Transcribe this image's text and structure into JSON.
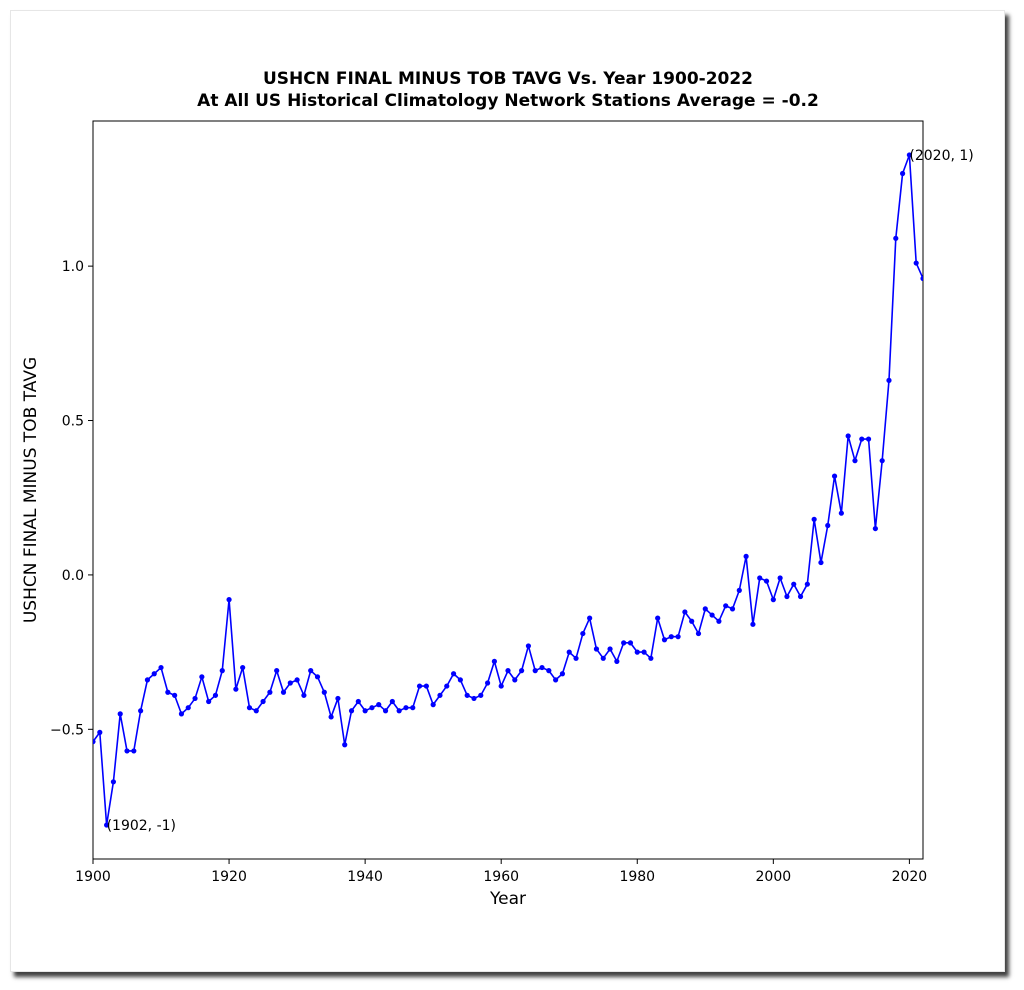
{
  "chart_data": {
    "type": "line",
    "title": "USHCN FINAL MINUS TOB TAVG Vs. Year 1900-2022",
    "subtitle": "At All US Historical Climatology Network Stations Average = -0.2",
    "xlabel": "Year",
    "ylabel": "USHCN FINAL MINUS TOB TAVG",
    "xlim": [
      1900,
      2022
    ],
    "ylim": [
      -0.92,
      1.47
    ],
    "xticks": [
      "1900",
      "1920",
      "1940",
      "1960",
      "1980",
      "2000",
      "2020"
    ],
    "yticks": [
      "−0.5",
      "0.0",
      "0.5",
      "1.0"
    ],
    "xtick_values": [
      1900,
      1920,
      1940,
      1960,
      1980,
      2000,
      2020
    ],
    "ytick_values": [
      -0.5,
      0.0,
      0.5,
      1.0
    ],
    "grid": false,
    "series": [
      {
        "color": "#0000ff",
        "x": [
          1900,
          1901,
          1902,
          1903,
          1904,
          1905,
          1906,
          1907,
          1908,
          1909,
          1910,
          1911,
          1912,
          1913,
          1914,
          1915,
          1916,
          1917,
          1918,
          1919,
          1920,
          1921,
          1922,
          1923,
          1924,
          1925,
          1926,
          1927,
          1928,
          1929,
          1930,
          1931,
          1932,
          1933,
          1934,
          1935,
          1936,
          1937,
          1938,
          1939,
          1940,
          1941,
          1942,
          1943,
          1944,
          1945,
          1946,
          1947,
          1948,
          1949,
          1950,
          1951,
          1952,
          1953,
          1954,
          1955,
          1956,
          1957,
          1958,
          1959,
          1960,
          1961,
          1962,
          1963,
          1964,
          1965,
          1966,
          1967,
          1968,
          1969,
          1970,
          1971,
          1972,
          1973,
          1974,
          1975,
          1976,
          1977,
          1978,
          1979,
          1980,
          1981,
          1982,
          1983,
          1984,
          1985,
          1986,
          1987,
          1988,
          1989,
          1990,
          1991,
          1992,
          1993,
          1994,
          1995,
          1996,
          1997,
          1998,
          1999,
          2000,
          2001,
          2002,
          2003,
          2004,
          2005,
          2006,
          2007,
          2008,
          2009,
          2010,
          2011,
          2012,
          2013,
          2014,
          2015,
          2016,
          2017,
          2018,
          2019,
          2020,
          2021,
          2022
        ],
        "y": [
          -0.54,
          -0.51,
          -0.81,
          -0.67,
          -0.45,
          -0.57,
          -0.57,
          -0.44,
          -0.34,
          -0.32,
          -0.3,
          -0.38,
          -0.39,
          -0.45,
          -0.43,
          -0.4,
          -0.33,
          -0.41,
          -0.39,
          -0.31,
          -0.08,
          -0.37,
          -0.3,
          -0.43,
          -0.44,
          -0.41,
          -0.38,
          -0.31,
          -0.38,
          -0.35,
          -0.34,
          -0.39,
          -0.31,
          -0.33,
          -0.38,
          -0.46,
          -0.4,
          -0.55,
          -0.44,
          -0.41,
          -0.44,
          -0.43,
          -0.42,
          -0.44,
          -0.41,
          -0.44,
          -0.43,
          -0.43,
          -0.36,
          -0.36,
          -0.42,
          -0.39,
          -0.36,
          -0.32,
          -0.34,
          -0.39,
          -0.4,
          -0.39,
          -0.35,
          -0.28,
          -0.36,
          -0.31,
          -0.34,
          -0.31,
          -0.23,
          -0.31,
          -0.3,
          -0.31,
          -0.34,
          -0.32,
          -0.25,
          -0.27,
          -0.19,
          -0.14,
          -0.24,
          -0.27,
          -0.24,
          -0.28,
          -0.22,
          -0.22,
          -0.25,
          -0.25,
          -0.27,
          -0.14,
          -0.21,
          -0.2,
          -0.2,
          -0.12,
          -0.15,
          -0.19,
          -0.11,
          -0.13,
          -0.15,
          -0.1,
          -0.11,
          -0.05,
          0.06,
          -0.16,
          -0.01,
          -0.02,
          -0.08,
          -0.01,
          -0.07,
          -0.03,
          -0.07,
          -0.03,
          0.18,
          0.04,
          0.16,
          0.32,
          0.2,
          0.45,
          0.37,
          0.44,
          0.44,
          0.15,
          0.37,
          0.63,
          1.09,
          1.3,
          1.36,
          1.01,
          0.96
        ]
      }
    ],
    "annotations": [
      {
        "text": "(1902, -1)",
        "x": 1902,
        "y": -0.81
      },
      {
        "text": "(2020, 1)",
        "x": 2020,
        "y": 1.36
      }
    ]
  }
}
